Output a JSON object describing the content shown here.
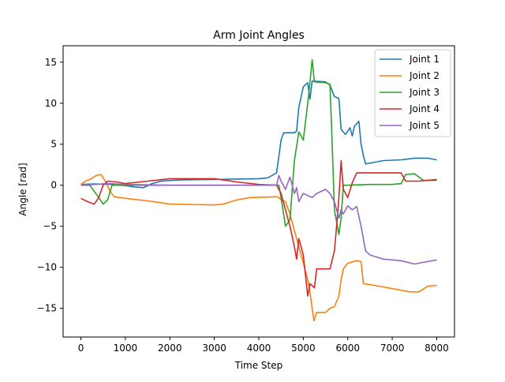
{
  "chart_data": {
    "type": "line",
    "title": "Arm Joint Angles",
    "xlabel": "Time Step",
    "ylabel": "Angle [rad]",
    "xlim": [
      -400,
      8400
    ],
    "ylim": [
      -18.5,
      17.0
    ],
    "xticks": [
      0,
      1000,
      2000,
      3000,
      4000,
      5000,
      6000,
      7000,
      8000
    ],
    "yticks": [
      -15,
      -10,
      -5,
      0,
      5,
      10,
      15
    ],
    "grid": false,
    "legend": "top-right",
    "series": [
      {
        "name": "Joint 1",
        "color": "#1f77b4",
        "points": [
          [
            0,
            0.1
          ],
          [
            300,
            0.15
          ],
          [
            700,
            0.1
          ],
          [
            1000,
            -0.05
          ],
          [
            1200,
            -0.2
          ],
          [
            1400,
            -0.3
          ],
          [
            1600,
            0.2
          ],
          [
            1800,
            0.5
          ],
          [
            2200,
            0.65
          ],
          [
            3000,
            0.7
          ],
          [
            4000,
            0.8
          ],
          [
            4200,
            0.9
          ],
          [
            4400,
            1.5
          ],
          [
            4450,
            3.5
          ],
          [
            4500,
            5.5
          ],
          [
            4560,
            6.4
          ],
          [
            4800,
            6.4
          ],
          [
            4850,
            6.6
          ],
          [
            4900,
            9.5
          ],
          [
            5000,
            12.0
          ],
          [
            5100,
            12.5
          ],
          [
            5150,
            10.5
          ],
          [
            5200,
            12.7
          ],
          [
            5500,
            12.6
          ],
          [
            5600,
            12.2
          ],
          [
            5700,
            10.8
          ],
          [
            5800,
            10.6
          ],
          [
            5850,
            6.8
          ],
          [
            5950,
            6.2
          ],
          [
            6050,
            7.0
          ],
          [
            6100,
            6.0
          ],
          [
            6150,
            7.2
          ],
          [
            6250,
            7.8
          ],
          [
            6300,
            5.0
          ],
          [
            6350,
            3.6
          ],
          [
            6400,
            2.6
          ],
          [
            6600,
            2.8
          ],
          [
            6800,
            3.0
          ],
          [
            7200,
            3.1
          ],
          [
            7500,
            3.3
          ],
          [
            7800,
            3.3
          ],
          [
            8000,
            3.1
          ]
        ]
      },
      {
        "name": "Joint 2",
        "color": "#ff7f0e",
        "points": [
          [
            0,
            0.1
          ],
          [
            100,
            0.5
          ],
          [
            200,
            0.7
          ],
          [
            350,
            1.2
          ],
          [
            450,
            1.3
          ],
          [
            550,
            0.5
          ],
          [
            650,
            -0.7
          ],
          [
            750,
            -1.4
          ],
          [
            1000,
            -1.6
          ],
          [
            1500,
            -1.9
          ],
          [
            2000,
            -2.3
          ],
          [
            3000,
            -2.4
          ],
          [
            3200,
            -2.3
          ],
          [
            3500,
            -1.8
          ],
          [
            3800,
            -1.5
          ],
          [
            4400,
            -1.4
          ],
          [
            4450,
            -1.5
          ],
          [
            4500,
            -1.8
          ],
          [
            4600,
            -2.0
          ],
          [
            4700,
            -3.5
          ],
          [
            4800,
            -5.5
          ],
          [
            4900,
            -7.5
          ],
          [
            5000,
            -9.5
          ],
          [
            5100,
            -11.5
          ],
          [
            5150,
            -13.0
          ],
          [
            5200,
            -15.0
          ],
          [
            5240,
            -16.5
          ],
          [
            5300,
            -15.5
          ],
          [
            5500,
            -15.5
          ],
          [
            5600,
            -15.0
          ],
          [
            5700,
            -14.8
          ],
          [
            5800,
            -13.5
          ],
          [
            5850,
            -11.5
          ],
          [
            5900,
            -10.2
          ],
          [
            6000,
            -9.5
          ],
          [
            6200,
            -9.2
          ],
          [
            6300,
            -9.3
          ],
          [
            6350,
            -12.0
          ],
          [
            6600,
            -12.2
          ],
          [
            7000,
            -12.6
          ],
          [
            7400,
            -13.0
          ],
          [
            7600,
            -13.0
          ],
          [
            7800,
            -12.3
          ],
          [
            8000,
            -12.2
          ]
        ]
      },
      {
        "name": "Joint 3",
        "color": "#2ca02c",
        "points": [
          [
            0,
            0.0
          ],
          [
            200,
            0.0
          ],
          [
            400,
            -1.5
          ],
          [
            500,
            -2.3
          ],
          [
            600,
            -1.8
          ],
          [
            700,
            0.0
          ],
          [
            1000,
            0.0
          ],
          [
            4000,
            0.0
          ],
          [
            4450,
            0.0
          ],
          [
            4500,
            -1.5
          ],
          [
            4600,
            -5.0
          ],
          [
            4700,
            -4.2
          ],
          [
            4800,
            3.0
          ],
          [
            4900,
            6.5
          ],
          [
            5000,
            5.5
          ],
          [
            5100,
            10.0
          ],
          [
            5150,
            12.5
          ],
          [
            5200,
            15.3
          ],
          [
            5250,
            12.6
          ],
          [
            5500,
            12.5
          ],
          [
            5600,
            12.3
          ],
          [
            5650,
            5.0
          ],
          [
            5700,
            -3.0
          ],
          [
            5800,
            -6.0
          ],
          [
            5850,
            -4.0
          ],
          [
            5900,
            0.0
          ],
          [
            6000,
            0.0
          ],
          [
            6500,
            0.1
          ],
          [
            7000,
            0.1
          ],
          [
            7200,
            0.2
          ],
          [
            7300,
            1.3
          ],
          [
            7500,
            1.4
          ],
          [
            7700,
            0.6
          ],
          [
            8000,
            0.6
          ]
        ]
      },
      {
        "name": "Joint 4",
        "color": "#d62728",
        "points": [
          [
            0,
            -1.6
          ],
          [
            150,
            -2.0
          ],
          [
            300,
            -2.3
          ],
          [
            400,
            -1.5
          ],
          [
            500,
            0.0
          ],
          [
            600,
            0.5
          ],
          [
            800,
            0.4
          ],
          [
            1000,
            0.2
          ],
          [
            1500,
            0.5
          ],
          [
            2000,
            0.8
          ],
          [
            3000,
            0.8
          ],
          [
            3500,
            0.4
          ],
          [
            4000,
            0.1
          ],
          [
            4400,
            0.0
          ],
          [
            4500,
            -1.0
          ],
          [
            4600,
            -3.0
          ],
          [
            4700,
            -5.0
          ],
          [
            4800,
            -7.5
          ],
          [
            4850,
            -9.0
          ],
          [
            4900,
            -6.5
          ],
          [
            5000,
            -8.5
          ],
          [
            5100,
            -13.5
          ],
          [
            5150,
            -12.0
          ],
          [
            5250,
            -12.5
          ],
          [
            5300,
            -10.2
          ],
          [
            5600,
            -10.2
          ],
          [
            5700,
            -8.0
          ],
          [
            5750,
            -5.0
          ],
          [
            5800,
            -1.5
          ],
          [
            5850,
            3.0
          ],
          [
            5900,
            -0.5
          ],
          [
            6000,
            -1.5
          ],
          [
            6100,
            0.3
          ],
          [
            6200,
            1.5
          ],
          [
            6400,
            1.5
          ],
          [
            7200,
            1.5
          ],
          [
            7300,
            0.5
          ],
          [
            7600,
            0.5
          ],
          [
            8000,
            0.7
          ]
        ]
      },
      {
        "name": "Joint 5",
        "color": "#9467bd",
        "points": [
          [
            0,
            0.0
          ],
          [
            300,
            0.1
          ],
          [
            600,
            0.2
          ],
          [
            1000,
            0.1
          ],
          [
            2000,
            0.0
          ],
          [
            3000,
            0.0
          ],
          [
            4000,
            0.0
          ],
          [
            4400,
            0.0
          ],
          [
            4450,
            1.2
          ],
          [
            4500,
            0.5
          ],
          [
            4600,
            -0.5
          ],
          [
            4700,
            1.0
          ],
          [
            4800,
            -1.0
          ],
          [
            4850,
            -0.3
          ],
          [
            4900,
            -2.0
          ],
          [
            5000,
            -1.0
          ],
          [
            5200,
            -1.5
          ],
          [
            5300,
            -1.0
          ],
          [
            5500,
            -0.5
          ],
          [
            5600,
            -1.0
          ],
          [
            5700,
            -2.0
          ],
          [
            5800,
            -4.0
          ],
          [
            5850,
            -3.0
          ],
          [
            5900,
            -3.5
          ],
          [
            6000,
            -2.5
          ],
          [
            6100,
            -3.0
          ],
          [
            6200,
            -2.6
          ],
          [
            6300,
            -5.0
          ],
          [
            6400,
            -8.0
          ],
          [
            6500,
            -8.5
          ],
          [
            6800,
            -9.0
          ],
          [
            7200,
            -9.2
          ],
          [
            7500,
            -9.6
          ],
          [
            7700,
            -9.4
          ],
          [
            8000,
            -9.1
          ]
        ]
      }
    ]
  }
}
